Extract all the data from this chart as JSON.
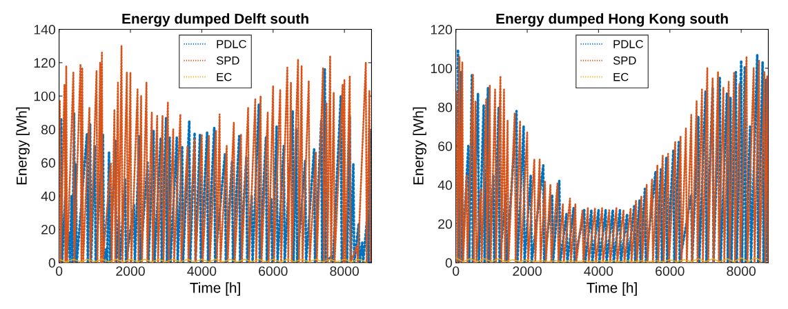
{
  "chart_data": [
    {
      "type": "line",
      "title": "Energy dumped Delft south",
      "xlabel": "Time [h]",
      "ylabel": "Energy [Wh]",
      "xlim": [
        0,
        8760
      ],
      "xticks": [
        0,
        2000,
        4000,
        6000,
        8000
      ],
      "ylim": [
        0,
        140
      ],
      "yticks": [
        0,
        20,
        40,
        60,
        80,
        100,
        120,
        140
      ],
      "grid": false,
      "legend": "top",
      "line_style": "dotted",
      "marker": "none",
      "series": [
        {
          "name": "PDLC",
          "color": "#0072bd",
          "x": [
            60,
            85,
            170,
            195,
            280,
            305,
            350,
            375,
            420,
            445,
            470,
            495,
            780,
            805,
            870,
            895,
            1000,
            1025,
            1230,
            1255,
            1320,
            1345,
            1400,
            1425,
            1580,
            1605,
            1680,
            1705,
            1850,
            1875,
            2100,
            2125,
            2250,
            2275,
            2480,
            2505,
            2650,
            2675,
            2850,
            2875,
            3000,
            3025,
            3100,
            3125,
            3300,
            3325,
            3450,
            3475,
            3650,
            3675,
            3800,
            3825,
            3950,
            3975,
            4150,
            4175,
            4350,
            4375,
            4650,
            4675,
            4850,
            4875,
            5050,
            5075,
            5250,
            5275,
            5400,
            5425,
            5600,
            5625,
            5800,
            5825,
            5950,
            5975,
            6100,
            6125,
            6300,
            6325,
            6550,
            6575,
            6650,
            6675,
            6900,
            6925,
            7150,
            7175,
            7350,
            7375,
            7450,
            7475,
            7650,
            7675,
            7900,
            7925,
            8050,
            8075,
            8150,
            8175,
            8250,
            8275,
            8400,
            8425,
            8500,
            8525,
            8650,
            8675,
            8720,
            8745
          ],
          "values": [
            86,
            0,
            39,
            0,
            18,
            0,
            40,
            0,
            90,
            0,
            59,
            0,
            77,
            0,
            83,
            0,
            70,
            0,
            77,
            0,
            8,
            0,
            66,
            0,
            73,
            0,
            28,
            0,
            50,
            0,
            35,
            0,
            76,
            0,
            60,
            0,
            79,
            0,
            75,
            0,
            87,
            0,
            75,
            0,
            75,
            0,
            70,
            0,
            85,
            0,
            78,
            0,
            77,
            0,
            78,
            0,
            81,
            0,
            65,
            0,
            61,
            0,
            76,
            0,
            63,
            0,
            40,
            0,
            95,
            0,
            75,
            0,
            38,
            0,
            82,
            0,
            70,
            0,
            91,
            0,
            80,
            0,
            61,
            0,
            68,
            0,
            85,
            0,
            116,
            0,
            4,
            0,
            100,
            0,
            28,
            0,
            88,
            0,
            59,
            0,
            23,
            0,
            12,
            0,
            30,
            0,
            79,
            0
          ]
        },
        {
          "name": "SPD",
          "color": "#d95319",
          "x": [
            20,
            45,
            150,
            175,
            200,
            225,
            400,
            425,
            600,
            625,
            650,
            675,
            850,
            875,
            1050,
            1075,
            1150,
            1175,
            1200,
            1225,
            1450,
            1475,
            1550,
            1575,
            1650,
            1675,
            1750,
            1775,
            1900,
            1925,
            2000,
            2025,
            2200,
            2225,
            2300,
            2325,
            2450,
            2475,
            2600,
            2625,
            2750,
            2775,
            2900,
            2925,
            3050,
            3075,
            3200,
            3225,
            3400,
            3425,
            3600,
            3625,
            3800,
            3825,
            4000,
            4025,
            4200,
            4225,
            4400,
            4425,
            4500,
            4525,
            4700,
            4725,
            4900,
            4925,
            5100,
            5125,
            5300,
            5325,
            5500,
            5525,
            5650,
            5675,
            5850,
            5875,
            6000,
            6025,
            6200,
            6225,
            6400,
            6425,
            6500,
            6525,
            6700,
            6725,
            6800,
            6825,
            7000,
            7025,
            7200,
            7225,
            7400,
            7425,
            7500,
            7525,
            7600,
            7625,
            7700,
            7725,
            7950,
            7975,
            8000,
            8025,
            8150,
            8175,
            8350,
            8375,
            8600,
            8625,
            8700,
            8725
          ],
          "values": [
            97,
            0,
            107,
            0,
            118,
            0,
            114,
            0,
            119,
            0,
            117,
            0,
            93,
            0,
            115,
            0,
            120,
            0,
            126,
            0,
            60,
            0,
            92,
            0,
            108,
            0,
            130,
            0,
            114,
            0,
            114,
            0,
            104,
            0,
            100,
            0,
            108,
            0,
            90,
            0,
            88,
            0,
            88,
            0,
            96,
            0,
            80,
            0,
            89,
            0,
            70,
            0,
            74,
            0,
            77,
            0,
            76,
            0,
            79,
            0,
            89,
            0,
            70,
            0,
            84,
            0,
            77,
            0,
            93,
            0,
            98,
            0,
            100,
            0,
            90,
            0,
            106,
            0,
            104,
            0,
            117,
            0,
            108,
            0,
            122,
            0,
            118,
            0,
            109,
            0,
            66,
            0,
            117,
            0,
            96,
            0,
            124,
            0,
            102,
            0,
            107,
            0,
            110,
            0,
            112,
            0,
            10,
            0,
            120,
            0,
            103,
            0
          ]
        },
        {
          "name": "EC",
          "color": "#edb120",
          "x": [
            0,
            200,
            400,
            600,
            800,
            1000,
            1200,
            1400,
            1600,
            1800,
            2000,
            2200,
            2400,
            2600,
            2800,
            3000,
            3200,
            3400,
            3600,
            3800,
            4000,
            4200,
            4400,
            4600,
            4800,
            5000,
            5200,
            5400,
            5600,
            5800,
            6000,
            6200,
            6400,
            6600,
            6800,
            7000,
            7200,
            7400,
            7600,
            7800,
            8000,
            8200,
            8400,
            8600
          ],
          "values": [
            2,
            0.5,
            2,
            0.5,
            2,
            0.5,
            2,
            0.5,
            2,
            0.5,
            2,
            0.5,
            2,
            0.5,
            2,
            0.5,
            2,
            0.5,
            2,
            0.5,
            2,
            0.5,
            2,
            0.5,
            2,
            0.5,
            2,
            0.5,
            2,
            0.5,
            2,
            0.5,
            2,
            0.5,
            2,
            0.5,
            2,
            0.5,
            2,
            0.5,
            2,
            0.5,
            2,
            0.5
          ]
        }
      ]
    },
    {
      "type": "line",
      "title": "Energy dumped Hong Kong south",
      "xlabel": "Time [h]",
      "ylabel": "Energy [Wh]",
      "xlim": [
        0,
        8760
      ],
      "xticks": [
        0,
        2000,
        4000,
        6000,
        8000
      ],
      "ylim": [
        0,
        120
      ],
      "yticks": [
        0,
        20,
        40,
        60,
        80,
        100,
        120
      ],
      "grid": false,
      "legend": "top",
      "line_style": "dotted",
      "marker": "none",
      "series": [
        {
          "name": "PDLC",
          "color": "#0072bd",
          "x": [
            60,
            85,
            150,
            175,
            350,
            375,
            450,
            475,
            620,
            645,
            780,
            805,
            900,
            925,
            1050,
            1075,
            1200,
            1225,
            1400,
            1425,
            1700,
            1725,
            1900,
            1925,
            2100,
            2125,
            2450,
            2475,
            2700,
            2725,
            2900,
            2925,
            3100,
            3125,
            3300,
            3325,
            3600,
            3625,
            3800,
            3825,
            4000,
            4025,
            4200,
            4225,
            4400,
            4425,
            4600,
            4625,
            4800,
            4825,
            5000,
            5025,
            5150,
            5175,
            5300,
            5325,
            5600,
            5625,
            5750,
            5775,
            5900,
            5925,
            6100,
            6125,
            6250,
            6275,
            6600,
            6625,
            6800,
            6825,
            7000,
            7025,
            7200,
            7225,
            7400,
            7425,
            7600,
            7625,
            7700,
            7725,
            7850,
            7875,
            8000,
            8025,
            8100,
            8125,
            8250,
            8275,
            8450,
            8475,
            8600,
            8625,
            8700,
            8725
          ],
          "values": [
            109,
            0,
            98,
            0,
            60,
            0,
            97,
            0,
            87,
            0,
            81,
            0,
            90,
            0,
            45,
            0,
            80,
            0,
            35,
            0,
            78,
            0,
            70,
            0,
            45,
            0,
            50,
            0,
            35,
            0,
            42,
            0,
            25,
            0,
            28,
            0,
            27,
            0,
            27,
            0,
            27,
            0,
            27,
            0,
            27,
            0,
            27,
            0,
            25,
            0,
            29,
            0,
            32,
            0,
            38,
            0,
            47,
            0,
            48,
            0,
            54,
            0,
            58,
            0,
            62,
            0,
            35,
            0,
            75,
            0,
            88,
            0,
            90,
            0,
            95,
            0,
            87,
            0,
            85,
            0,
            98,
            0,
            104,
            0,
            101,
            0,
            70,
            0,
            107,
            0,
            103,
            0,
            94,
            0
          ]
        },
        {
          "name": "SPD",
          "color": "#d95319",
          "x": [
            20,
            45,
            100,
            125,
            180,
            205,
            300,
            325,
            480,
            505,
            550,
            575,
            700,
            725,
            850,
            875,
            950,
            975,
            1100,
            1125,
            1250,
            1275,
            1350,
            1375,
            1450,
            1475,
            1650,
            1675,
            1800,
            1825,
            2000,
            2025,
            2200,
            2225,
            2350,
            2375,
            2500,
            2525,
            2650,
            2675,
            2850,
            2875,
            3000,
            3025,
            3200,
            3225,
            3350,
            3375,
            3550,
            3575,
            3700,
            3725,
            3900,
            3925,
            4100,
            4125,
            4300,
            4325,
            4500,
            4525,
            4700,
            4725,
            4900,
            4925,
            5050,
            5075,
            5200,
            5225,
            5350,
            5375,
            5500,
            5525,
            5650,
            5675,
            5800,
            5825,
            5950,
            5975,
            6150,
            6175,
            6300,
            6325,
            6450,
            6475,
            6600,
            6625,
            6750,
            6775,
            6900,
            6925,
            7050,
            7075,
            7200,
            7225,
            7350,
            7375,
            7500,
            7525,
            7650,
            7675,
            7800,
            7825,
            7950,
            7975,
            8150,
            8175,
            8350,
            8375,
            8500,
            8525,
            8650,
            8675,
            8730,
            8755
          ],
          "values": [
            88,
            0,
            106,
            0,
            103,
            0,
            45,
            0,
            97,
            0,
            83,
            0,
            38,
            0,
            84,
            0,
            91,
            0,
            89,
            0,
            96,
            0,
            89,
            0,
            73,
            0,
            77,
            0,
            73,
            0,
            67,
            0,
            53,
            0,
            53,
            0,
            42,
            0,
            40,
            0,
            41,
            0,
            30,
            0,
            33,
            0,
            30,
            0,
            27,
            0,
            28,
            0,
            28,
            0,
            28,
            0,
            27,
            0,
            28,
            0,
            27,
            0,
            28,
            0,
            32,
            0,
            34,
            0,
            40,
            0,
            43,
            0,
            50,
            0,
            55,
            0,
            56,
            0,
            62,
            0,
            65,
            0,
            69,
            0,
            76,
            0,
            83,
            0,
            89,
            0,
            100,
            0,
            95,
            0,
            98,
            0,
            90,
            0,
            93,
            0,
            98,
            0,
            92,
            0,
            106,
            0,
            100,
            0,
            104,
            0,
            98,
            0,
            96,
            0
          ]
        },
        {
          "name": "EC",
          "color": "#edb120",
          "x": [
            0,
            200,
            400,
            600,
            800,
            1000,
            1200,
            1400,
            1600,
            1800,
            2000,
            2200,
            2400,
            2600,
            2800,
            3000,
            3200,
            3400,
            3600,
            3800,
            4000,
            4200,
            4400,
            4600,
            4800,
            5000,
            5200,
            5400,
            5600,
            5800,
            6000,
            6200,
            6400,
            6600,
            6800,
            7000,
            7200,
            7400,
            7600,
            7800,
            8000,
            8200,
            8400,
            8600
          ],
          "values": [
            2.5,
            0.5,
            2,
            0.5,
            2,
            0.5,
            2,
            0.5,
            1.5,
            0.5,
            1.5,
            0.5,
            1,
            0.5,
            1,
            0.5,
            1,
            0.5,
            1,
            0.5,
            1,
            0.5,
            1,
            0.5,
            1,
            0.5,
            1,
            0.5,
            1,
            0.5,
            1.5,
            0.5,
            1.5,
            0.5,
            2,
            0.5,
            2,
            0.5,
            2,
            0.5,
            2.5,
            0.5,
            2.5,
            0.5
          ]
        }
      ]
    }
  ]
}
